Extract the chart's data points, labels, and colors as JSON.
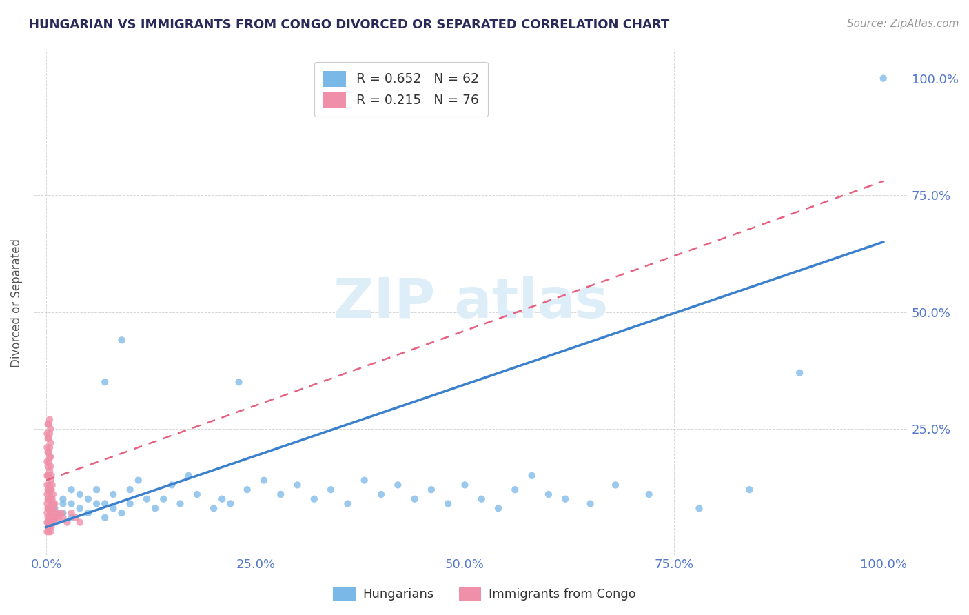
{
  "title": "HUNGARIAN VS IMMIGRANTS FROM CONGO DIVORCED OR SEPARATED CORRELATION CHART",
  "source": "Source: ZipAtlas.com",
  "ylabel": "Divorced or Separated",
  "legend_entries": [
    {
      "label": "R = 0.652   N = 62",
      "color": "#a8c8f0"
    },
    {
      "label": "R = 0.215   N = 76",
      "color": "#f4a8b8"
    }
  ],
  "legend_bottom": [
    "Hungarians",
    "Immigrants from Congo"
  ],
  "hungarian_color": "#7ab8e8",
  "congo_color": "#f090a8",
  "trendline_hungarian_color": "#3a80cc",
  "trendline_congo_color": "#e86080",
  "watermark_color": "#ddeef8",
  "xlim": [
    0,
    1
  ],
  "ylim": [
    0,
    1
  ],
  "xticks": [
    0,
    0.25,
    0.5,
    0.75,
    1.0
  ],
  "yticks": [
    0.25,
    0.5,
    0.75,
    1.0
  ],
  "xticklabels": [
    "0.0%",
    "25.0%",
    "50.0%",
    "75.0%",
    "100.0%"
  ],
  "yticklabels": [
    "25.0%",
    "50.0%",
    "75.0%",
    "100.0%"
  ],
  "tick_color": "#5577cc",
  "background_color": "#ffffff",
  "grid_color": "#cccccc",
  "hungarian_x": [
    0.01,
    0.01,
    0.02,
    0.02,
    0.02,
    0.03,
    0.03,
    0.03,
    0.04,
    0.04,
    0.05,
    0.05,
    0.06,
    0.06,
    0.07,
    0.07,
    0.07,
    0.08,
    0.08,
    0.09,
    0.09,
    0.1,
    0.1,
    0.11,
    0.12,
    0.13,
    0.14,
    0.15,
    0.16,
    0.17,
    0.18,
    0.2,
    0.21,
    0.22,
    0.23,
    0.24,
    0.26,
    0.28,
    0.3,
    0.32,
    0.34,
    0.36,
    0.38,
    0.4,
    0.42,
    0.44,
    0.46,
    0.48,
    0.5,
    0.52,
    0.54,
    0.56,
    0.58,
    0.6,
    0.62,
    0.65,
    0.68,
    0.72,
    0.78,
    0.84,
    0.9,
    1.0
  ],
  "hungarian_y": [
    0.05,
    0.08,
    0.07,
    0.1,
    0.09,
    0.06,
    0.09,
    0.12,
    0.08,
    0.11,
    0.07,
    0.1,
    0.09,
    0.12,
    0.06,
    0.09,
    0.35,
    0.08,
    0.11,
    0.07,
    0.44,
    0.09,
    0.12,
    0.14,
    0.1,
    0.08,
    0.1,
    0.13,
    0.09,
    0.15,
    0.11,
    0.08,
    0.1,
    0.09,
    0.35,
    0.12,
    0.14,
    0.11,
    0.13,
    0.1,
    0.12,
    0.09,
    0.14,
    0.11,
    0.13,
    0.1,
    0.12,
    0.09,
    0.13,
    0.1,
    0.08,
    0.12,
    0.15,
    0.11,
    0.1,
    0.09,
    0.13,
    0.11,
    0.08,
    0.12,
    0.37,
    1.0
  ],
  "congo_x": [
    0.001,
    0.001,
    0.001,
    0.001,
    0.001,
    0.001,
    0.001,
    0.001,
    0.001,
    0.001,
    0.002,
    0.002,
    0.002,
    0.002,
    0.002,
    0.002,
    0.002,
    0.002,
    0.002,
    0.002,
    0.003,
    0.003,
    0.003,
    0.003,
    0.003,
    0.003,
    0.003,
    0.003,
    0.003,
    0.003,
    0.004,
    0.004,
    0.004,
    0.004,
    0.004,
    0.004,
    0.004,
    0.004,
    0.004,
    0.004,
    0.005,
    0.005,
    0.005,
    0.005,
    0.005,
    0.005,
    0.005,
    0.005,
    0.005,
    0.005,
    0.006,
    0.006,
    0.006,
    0.006,
    0.006,
    0.007,
    0.007,
    0.007,
    0.007,
    0.008,
    0.008,
    0.008,
    0.009,
    0.009,
    0.01,
    0.01,
    0.011,
    0.012,
    0.013,
    0.015,
    0.018,
    0.02,
    0.025,
    0.03,
    0.035,
    0.04
  ],
  "congo_y": [
    0.03,
    0.05,
    0.07,
    0.09,
    0.11,
    0.13,
    0.15,
    0.18,
    0.21,
    0.24,
    0.04,
    0.06,
    0.08,
    0.1,
    0.12,
    0.15,
    0.17,
    0.2,
    0.23,
    0.26,
    0.03,
    0.05,
    0.08,
    0.1,
    0.12,
    0.15,
    0.18,
    0.2,
    0.23,
    0.26,
    0.04,
    0.06,
    0.08,
    0.11,
    0.13,
    0.16,
    0.19,
    0.21,
    0.24,
    0.27,
    0.03,
    0.05,
    0.07,
    0.1,
    0.12,
    0.14,
    0.17,
    0.19,
    0.22,
    0.25,
    0.04,
    0.07,
    0.09,
    0.12,
    0.15,
    0.05,
    0.08,
    0.1,
    0.13,
    0.06,
    0.09,
    0.11,
    0.05,
    0.08,
    0.06,
    0.09,
    0.07,
    0.06,
    0.07,
    0.06,
    0.07,
    0.06,
    0.05,
    0.07,
    0.06,
    0.05
  ],
  "hung_trend_x0": 0.0,
  "hung_trend_y0": 0.04,
  "hung_trend_x1": 1.0,
  "hung_trend_y1": 0.65,
  "congo_trend_x0": 0.0,
  "congo_trend_y0": 0.14,
  "congo_trend_x1": 1.0,
  "congo_trend_y1": 0.78
}
